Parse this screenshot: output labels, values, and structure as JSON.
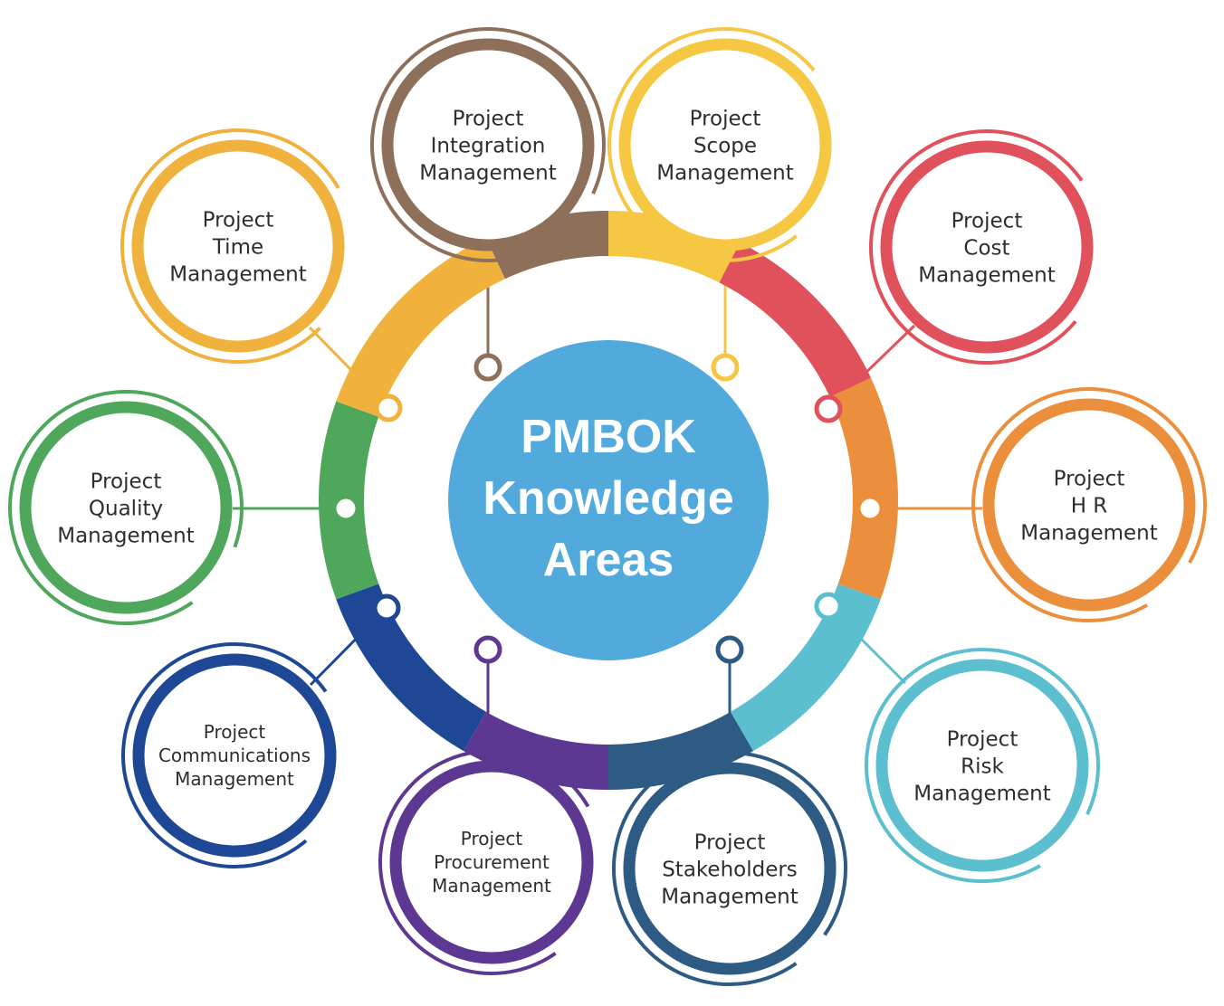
{
  "center": {
    "lines": [
      "PMBOK",
      "Knowledge",
      "Areas"
    ],
    "color": "#52a9dc"
  },
  "areas": [
    {
      "id": "integration",
      "lines": [
        "Project",
        "Integration",
        "Management"
      ],
      "color": "#8d6f5a"
    },
    {
      "id": "scope",
      "lines": [
        "Project",
        "Scope",
        "Management"
      ],
      "color": "#f5c743"
    },
    {
      "id": "cost",
      "lines": [
        "Project",
        "Cost",
        "Management"
      ],
      "color": "#e0515b"
    },
    {
      "id": "hr",
      "lines": [
        "Project",
        "H R",
        "Management"
      ],
      "color": "#ec8f3c"
    },
    {
      "id": "risk",
      "lines": [
        "Project",
        "Risk",
        "Management"
      ],
      "color": "#5bbfcf"
    },
    {
      "id": "stakeholders",
      "lines": [
        "Project",
        "Stakeholders",
        "Management"
      ],
      "color": "#2e5b84"
    },
    {
      "id": "procurement",
      "lines": [
        "Project",
        "Procurement",
        "Management"
      ],
      "color": "#5c3892"
    },
    {
      "id": "communications",
      "lines": [
        "Project",
        "Communications",
        "Management"
      ],
      "color": "#1e4896"
    },
    {
      "id": "quality",
      "lines": [
        "Project",
        "Quality",
        "Management"
      ],
      "color": "#4ea75a"
    },
    {
      "id": "time",
      "lines": [
        "Project",
        "Time",
        "Management"
      ],
      "color": "#f0b23c"
    }
  ]
}
